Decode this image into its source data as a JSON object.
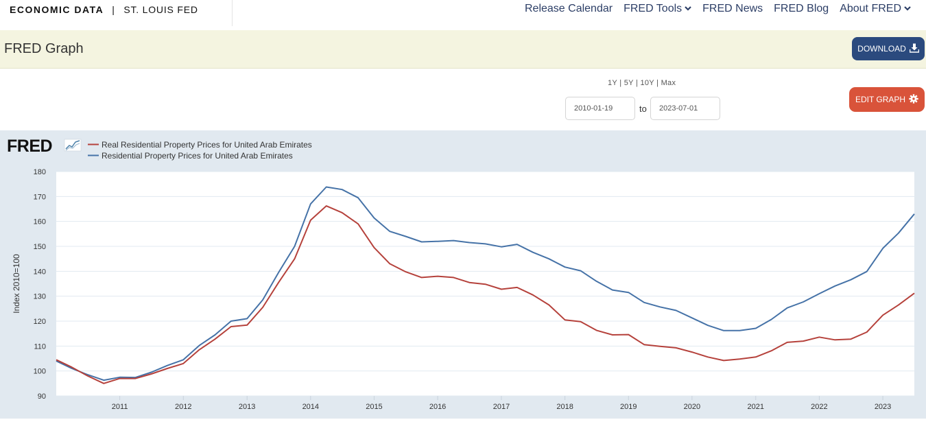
{
  "header": {
    "brand": "ECONOMIC DATA",
    "brand_sep": "|",
    "brand_org": "ST. LOUIS FED",
    "nav": [
      {
        "label": "Release Calendar",
        "dropdown": false
      },
      {
        "label": "FRED Tools",
        "dropdown": true
      },
      {
        "label": "FRED News",
        "dropdown": false
      },
      {
        "label": "FRED Blog",
        "dropdown": false
      },
      {
        "label": "About FRED",
        "dropdown": true
      }
    ],
    "link_color": "#2c3e66"
  },
  "titlebar": {
    "title": "FRED Graph",
    "download_label": "DOWNLOAD",
    "download_icon": "download-icon",
    "download_color": "#2b4a7e"
  },
  "controls": {
    "ranges": "1Y | 5Y | 10Y | Max",
    "start_date": "2010-01-19",
    "to_label": "to",
    "end_date": "2023-07-01",
    "edit_label": "EDIT GRAPH",
    "edit_icon": "gear-icon",
    "edit_color": "#d9533a"
  },
  "chart_data": {
    "type": "line",
    "logo": "FRED",
    "ylabel": "Index 2010=100",
    "ylim": [
      90,
      180
    ],
    "yticks": [
      90,
      100,
      110,
      120,
      130,
      140,
      150,
      160,
      170,
      180
    ],
    "xlim": [
      "2010-01-01",
      "2023-07-01"
    ],
    "xticks": [
      "2011",
      "2012",
      "2013",
      "2014",
      "2015",
      "2016",
      "2017",
      "2018",
      "2019",
      "2020",
      "2021",
      "2022",
      "2023"
    ],
    "grid": true,
    "legend_position": "top-left",
    "series": [
      {
        "name": "Real Residential Property Prices for United Arab Emirates",
        "color": "#b5413b",
        "x": [
          "2010-01-01",
          "2010-04-01",
          "2010-07-01",
          "2010-10-01",
          "2011-01-01",
          "2011-04-01",
          "2011-07-01",
          "2011-10-01",
          "2012-01-01",
          "2012-04-01",
          "2012-07-01",
          "2012-10-01",
          "2013-01-01",
          "2013-04-01",
          "2013-07-01",
          "2013-10-01",
          "2014-01-01",
          "2014-04-01",
          "2014-07-01",
          "2014-10-01",
          "2015-01-01",
          "2015-04-01",
          "2015-07-01",
          "2015-10-01",
          "2016-01-01",
          "2016-04-01",
          "2016-07-01",
          "2016-10-01",
          "2017-01-01",
          "2017-04-01",
          "2017-07-01",
          "2017-10-01",
          "2018-01-01",
          "2018-04-01",
          "2018-07-01",
          "2018-10-01",
          "2019-01-01",
          "2019-04-01",
          "2019-07-01",
          "2019-10-01",
          "2020-01-01",
          "2020-04-01",
          "2020-07-01",
          "2020-10-01",
          "2021-01-01",
          "2021-04-01",
          "2021-07-01",
          "2021-10-01",
          "2022-01-01",
          "2022-04-01",
          "2022-07-01",
          "2022-10-01",
          "2023-01-01",
          "2023-04-01",
          "2023-07-01"
        ],
        "values": [
          104.5,
          101.5,
          98,
          95,
          97,
          97,
          98.8,
          101,
          103,
          108.5,
          112.8,
          117.8,
          118.4,
          125.5,
          135.5,
          145,
          160.5,
          166.2,
          163.5,
          159,
          149.5,
          143,
          139.8,
          137.5,
          138,
          137.5,
          135.5,
          134.8,
          132.8,
          133.5,
          130.5,
          126.5,
          120.5,
          119.8,
          116.3,
          114.5,
          114.6,
          110.6,
          109.9,
          109.3,
          107.6,
          105.6,
          104.2,
          104.8,
          105.6,
          108.1,
          111.5,
          112,
          113.6,
          112.5,
          112.8,
          115.6,
          122.4,
          126.5,
          131.2
        ]
      },
      {
        "name": "Residential Property Prices for United Arab Emirates",
        "color": "#4572a7",
        "x": [
          "2010-01-01",
          "2010-04-01",
          "2010-07-01",
          "2010-10-01",
          "2011-01-01",
          "2011-04-01",
          "2011-07-01",
          "2011-10-01",
          "2012-01-01",
          "2012-04-01",
          "2012-07-01",
          "2012-10-01",
          "2013-01-01",
          "2013-04-01",
          "2013-07-01",
          "2013-10-01",
          "2014-01-01",
          "2014-04-01",
          "2014-07-01",
          "2014-10-01",
          "2015-01-01",
          "2015-04-01",
          "2015-07-01",
          "2015-10-01",
          "2016-01-01",
          "2016-04-01",
          "2016-07-01",
          "2016-10-01",
          "2017-01-01",
          "2017-04-01",
          "2017-07-01",
          "2017-10-01",
          "2018-01-01",
          "2018-04-01",
          "2018-07-01",
          "2018-10-01",
          "2019-01-01",
          "2019-04-01",
          "2019-07-01",
          "2019-10-01",
          "2020-01-01",
          "2020-04-01",
          "2020-07-01",
          "2020-10-01",
          "2021-01-01",
          "2021-04-01",
          "2021-07-01",
          "2021-10-01",
          "2022-01-01",
          "2022-04-01",
          "2022-07-01",
          "2022-10-01",
          "2023-01-01",
          "2023-04-01",
          "2023-07-01"
        ],
        "values": [
          104,
          101,
          98.5,
          96.3,
          97.5,
          97.4,
          99.5,
          102.2,
          104.5,
          110.2,
          114.5,
          120,
          121,
          128.5,
          139.5,
          150,
          167,
          173.8,
          172.8,
          169.5,
          161.4,
          156,
          154,
          151.8,
          152,
          152.3,
          151.5,
          151,
          149.8,
          150.8,
          147.6,
          145,
          141.7,
          140.2,
          136,
          132.5,
          131.5,
          127.5,
          125.7,
          124.3,
          121.3,
          118.3,
          116.2,
          116.2,
          117.1,
          120.7,
          125.3,
          127.7,
          131,
          134.1,
          136.6,
          139.9,
          149.2,
          155.3,
          163
        ]
      }
    ]
  }
}
